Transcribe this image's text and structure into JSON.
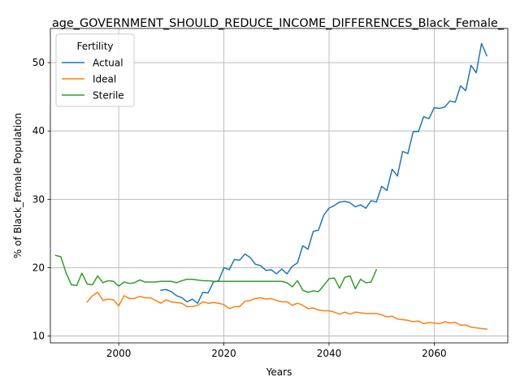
{
  "chart_data": {
    "type": "line",
    "title": "age_GOVERNMENT_SHOULD_REDUCE_INCOME_DIFFERENCES_Black_Female_",
    "xlabel": "Years",
    "ylabel": "% of Black_Female Population",
    "xlim": [
      1987,
      2074
    ],
    "ylim": [
      9,
      55
    ],
    "xticks": [
      2000,
      2020,
      2040,
      2060
    ],
    "yticks": [
      10,
      20,
      30,
      40,
      50
    ],
    "grid": true,
    "legend": {
      "title": "Fertility",
      "position": "top-left"
    },
    "series": [
      {
        "name": "Actual",
        "color": "#1f77b4",
        "x": [
          2008,
          2009,
          2010,
          2011,
          2012,
          2013,
          2014,
          2015,
          2016,
          2017,
          2018,
          2019,
          2020,
          2021,
          2022,
          2023,
          2024,
          2025,
          2026,
          2027,
          2028,
          2029,
          2030,
          2031,
          2032,
          2033,
          2034,
          2035,
          2036,
          2037,
          2038,
          2039,
          2040,
          2041,
          2042,
          2043,
          2044,
          2045,
          2046,
          2047,
          2048,
          2049,
          2050,
          2051,
          2052,
          2053,
          2054,
          2055,
          2056,
          2057,
          2058,
          2059,
          2060,
          2061,
          2062,
          2063,
          2064,
          2065,
          2066,
          2067,
          2068,
          2069,
          2070
        ],
        "y": [
          16.7,
          16.8,
          16.5,
          15.9,
          15.6,
          15.0,
          15.4,
          14.8,
          16.4,
          16.3,
          17.9,
          18.1,
          20.0,
          19.7,
          21.2,
          21.1,
          22.0,
          21.5,
          20.5,
          20.3,
          19.6,
          19.7,
          19.1,
          19.8,
          19.1,
          20.2,
          20.7,
          23.2,
          22.7,
          25.3,
          25.5,
          27.7,
          28.7,
          29.1,
          29.6,
          29.7,
          29.5,
          28.9,
          29.2,
          28.7,
          29.8,
          29.6,
          31.9,
          31.3,
          34.4,
          33.4,
          37.0,
          36.7,
          39.9,
          39.9,
          42.1,
          41.8,
          43.4,
          43.3,
          43.5,
          44.4,
          44.2,
          46.6,
          45.9,
          49.6,
          48.5,
          52.8,
          51.0
        ]
      },
      {
        "name": "Ideal",
        "color": "#ff7f0e",
        "x": [
          1994,
          1995,
          1996,
          1997,
          1998,
          1999,
          2000,
          2001,
          2002,
          2003,
          2004,
          2005,
          2006,
          2007,
          2008,
          2009,
          2010,
          2011,
          2012,
          2013,
          2014,
          2015,
          2016,
          2017,
          2018,
          2019,
          2020,
          2021,
          2022,
          2023,
          2024,
          2025,
          2026,
          2027,
          2028,
          2029,
          2030,
          2031,
          2032,
          2033,
          2034,
          2035,
          2036,
          2037,
          2038,
          2039,
          2040,
          2041,
          2042,
          2043,
          2044,
          2045,
          2046,
          2047,
          2048,
          2049,
          2050,
          2051,
          2052,
          2053,
          2054,
          2055,
          2056,
          2057,
          2058,
          2059,
          2060,
          2061,
          2062,
          2063,
          2064,
          2065,
          2066,
          2067,
          2068,
          2069,
          2070
        ],
        "y": [
          15.0,
          15.9,
          16.4,
          15.2,
          15.4,
          15.3,
          14.4,
          15.9,
          15.5,
          15.5,
          15.8,
          15.6,
          15.6,
          15.2,
          14.8,
          15.3,
          15.0,
          14.9,
          14.8,
          14.3,
          14.3,
          14.5,
          15.0,
          14.8,
          14.9,
          14.8,
          14.6,
          14.0,
          14.3,
          14.3,
          15.1,
          15.2,
          15.5,
          15.6,
          15.4,
          15.5,
          15.2,
          15.0,
          15.0,
          14.5,
          14.8,
          14.5,
          14.0,
          14.1,
          13.8,
          13.7,
          13.7,
          13.5,
          13.2,
          13.5,
          13.2,
          13.5,
          13.4,
          13.3,
          13.3,
          13.3,
          13.1,
          12.8,
          12.9,
          12.5,
          12.4,
          12.3,
          12.1,
          12.2,
          11.8,
          12.0,
          11.9,
          11.8,
          12.1,
          11.9,
          12.0,
          11.6,
          11.6,
          11.3,
          11.2,
          11.1,
          11.0
        ]
      },
      {
        "name": "Sterile",
        "color": "#2ca02c",
        "x": [
          1988,
          1989,
          1990,
          1991,
          1992,
          1993,
          1994,
          1995,
          1996,
          1997,
          1998,
          1999,
          2000,
          2001,
          2002,
          2003,
          2004,
          2005,
          2006,
          2007,
          2008,
          2009,
          2010,
          2011,
          2012,
          2013,
          2014,
          2015,
          2016,
          2017,
          2018,
          2019,
          2020,
          2021,
          2022,
          2023,
          2024,
          2025,
          2026,
          2027,
          2028,
          2029,
          2030,
          2031,
          2032,
          2033,
          2034,
          2035,
          2036,
          2037,
          2038,
          2039,
          2040,
          2041,
          2042,
          2043,
          2044,
          2045,
          2046,
          2047,
          2048,
          2049
        ],
        "y": [
          21.8,
          21.6,
          19.2,
          17.5,
          17.4,
          19.2,
          17.6,
          17.5,
          18.8,
          17.8,
          18.1,
          18.0,
          17.3,
          17.9,
          17.7,
          17.8,
          18.2,
          17.9,
          17.9,
          17.9,
          18.0,
          18.0,
          18.0,
          17.8,
          18.1,
          18.3,
          18.3,
          18.2,
          18.1,
          18.1,
          18.0,
          18.0,
          18.0,
          18.0,
          18.0,
          18.0,
          18.0,
          18.0,
          18.0,
          18.0,
          18.0,
          18.0,
          18.0,
          18.0,
          17.8,
          17.2,
          18.1,
          16.7,
          16.4,
          16.6,
          16.5,
          17.4,
          18.4,
          18.5,
          17.0,
          18.6,
          18.8,
          16.9,
          18.3,
          17.8,
          17.9,
          19.7
        ]
      }
    ]
  }
}
